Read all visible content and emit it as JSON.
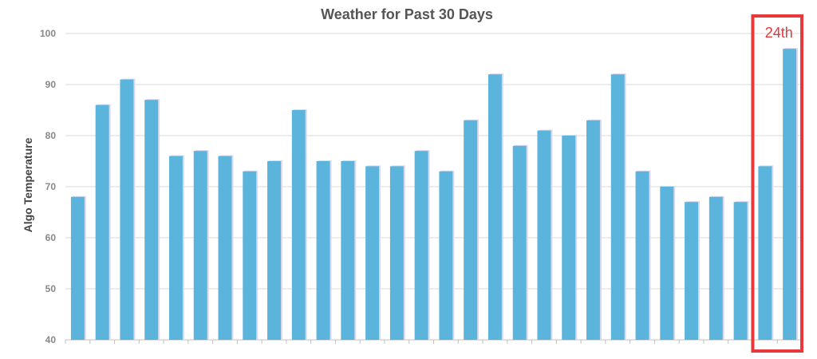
{
  "chart_data": {
    "type": "bar",
    "title": "Weather for Past 30 Days",
    "xlabel": "",
    "ylabel": "Algo Temperature",
    "ylim": [
      40,
      100
    ],
    "yticks": [
      40,
      50,
      60,
      70,
      80,
      90,
      100
    ],
    "grid": true,
    "series": [
      {
        "values": [
          68,
          86,
          91,
          87,
          76,
          77,
          76,
          73,
          75,
          85,
          75,
          75,
          74,
          74,
          77,
          73,
          83,
          92,
          78,
          81,
          80,
          83,
          92,
          73,
          70,
          67,
          68,
          67,
          74,
          97
        ]
      }
    ],
    "colors": {
      "bar": "#5ab4dc",
      "highlight": "#e8383a"
    },
    "annotation": {
      "text": "24th",
      "highlight_bars": [
        29,
        30
      ]
    }
  }
}
